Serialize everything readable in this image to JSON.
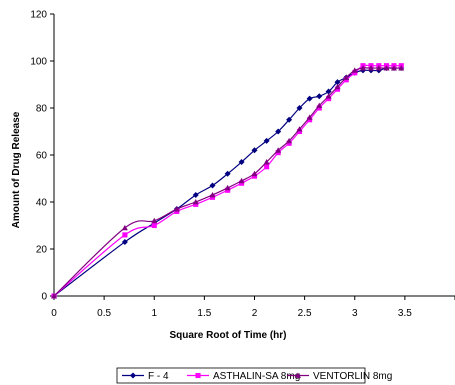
{
  "chart_data": {
    "type": "line",
    "xlabel": "Square Root of Time (hr)",
    "ylabel": "Amount of Drug Release",
    "xlim": [
      0,
      4
    ],
    "ylim": [
      0,
      120
    ],
    "x_ticks": [
      "0",
      "0.5",
      "1",
      "1.5",
      "2",
      "2.5",
      "3",
      "3.5"
    ],
    "y_ticks": [
      "0",
      "20",
      "40",
      "60",
      "80",
      "100",
      "120"
    ],
    "grid": false,
    "legend_position": "bottom",
    "series": [
      {
        "name": "F - 4",
        "color": "#000080",
        "marker": "diamond",
        "x": [
          0,
          0.707,
          1.0,
          1.225,
          1.414,
          1.581,
          1.732,
          1.871,
          2.0,
          2.121,
          2.236,
          2.345,
          2.449,
          2.55,
          2.646,
          2.739,
          2.828,
          2.915,
          3.0,
          3.082,
          3.162,
          3.24,
          3.317,
          3.391,
          3.464
        ],
        "y": [
          0,
          23,
          31,
          37,
          43,
          47,
          52,
          57,
          62,
          66,
          70,
          75,
          80,
          84,
          85,
          87,
          91,
          93,
          95,
          96,
          96,
          96,
          97,
          97,
          97
        ]
      },
      {
        "name": "ASTHALIN-SA 8mg",
        "color": "#FF00FF",
        "marker": "square",
        "x": [
          0,
          0.707,
          1.0,
          1.225,
          1.414,
          1.581,
          1.732,
          1.871,
          2.0,
          2.121,
          2.236,
          2.345,
          2.449,
          2.55,
          2.646,
          2.739,
          2.828,
          2.915,
          3.0,
          3.082,
          3.162,
          3.24,
          3.317,
          3.391,
          3.464
        ],
        "y": [
          0,
          26,
          30,
          36,
          39,
          42,
          45,
          48,
          51,
          55,
          61,
          65,
          70,
          75,
          80,
          84,
          88,
          92,
          95,
          98,
          98,
          98,
          98,
          98,
          98
        ]
      },
      {
        "name": "VENTORLIN 8mg",
        "color": "#800080",
        "marker": "triangle",
        "x": [
          0,
          0.707,
          1.0,
          1.225,
          1.414,
          1.581,
          1.732,
          1.871,
          2.0,
          2.121,
          2.236,
          2.345,
          2.449,
          2.55,
          2.646,
          2.739,
          2.828,
          2.915,
          3.0,
          3.082,
          3.162,
          3.24,
          3.317,
          3.391,
          3.464
        ],
        "y": [
          0,
          29,
          32,
          37,
          40,
          43,
          46,
          49,
          52,
          57,
          62,
          66,
          71,
          76,
          81,
          85,
          89,
          93,
          96,
          97,
          97,
          97,
          97,
          97,
          97
        ]
      }
    ]
  }
}
